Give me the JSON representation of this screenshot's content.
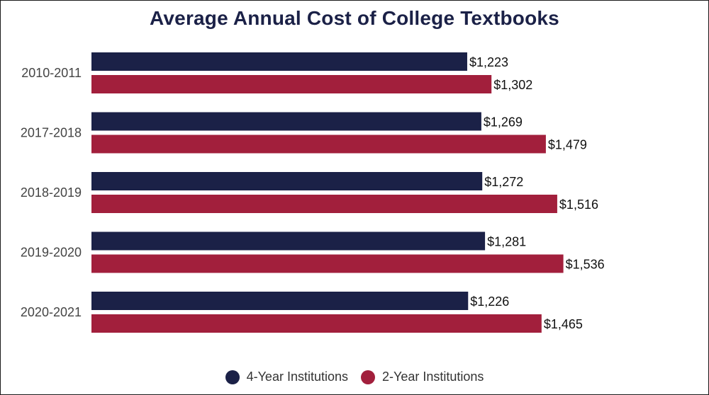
{
  "chart_data": {
    "type": "bar",
    "orientation": "horizontal",
    "title": "Average Annual Cost of College Textbooks",
    "categories": [
      "2010-2011",
      "2017-2018",
      "2018-2019",
      "2019-2020",
      "2020-2021"
    ],
    "series": [
      {
        "name": "4-Year Institutions",
        "color": "#1b2147",
        "values": [
          1223,
          1269,
          1272,
          1281,
          1226
        ],
        "labels": [
          "$1,223",
          "$1,269",
          "$1,272",
          "$1,281",
          "$1,226"
        ]
      },
      {
        "name": "2-Year Institutions",
        "color": "#a21f3c",
        "values": [
          1302,
          1479,
          1516,
          1536,
          1465
        ],
        "labels": [
          "$1,302",
          "$1,479",
          "$1,516",
          "$1,536",
          "$1,465"
        ]
      }
    ],
    "xlim": [
      0,
      1800
    ],
    "xlabel": "",
    "ylabel": "",
    "grid": false,
    "legend_position": "bottom"
  }
}
